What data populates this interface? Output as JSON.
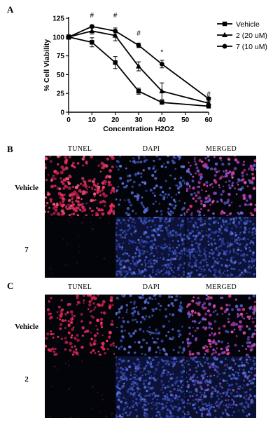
{
  "panels": {
    "a": "A",
    "b": "B",
    "c": "C"
  },
  "chart_data": {
    "type": "line",
    "title": "",
    "xlabel": "Concentration H2O2",
    "ylabel": "% Cell Viability",
    "xlim": [
      0,
      60
    ],
    "ylim": [
      0,
      125
    ],
    "x_ticks": [
      0,
      10,
      20,
      30,
      40,
      50,
      60
    ],
    "y_ticks": [
      0,
      25,
      50,
      75,
      100,
      125
    ],
    "x_tick_labels": [
      "0",
      "10",
      "20",
      "30",
      "40",
      "50",
      "60"
    ],
    "y_tick_labels": [
      "0",
      "25",
      "50",
      "75",
      "100",
      "125"
    ],
    "legend_position": "top-right",
    "series": [
      {
        "name": "Vehicle",
        "marker": "square",
        "x": [
          0,
          10,
          20,
          30,
          40,
          60
        ],
        "y": [
          100,
          93,
          66,
          28,
          13,
          8
        ],
        "err": [
          3,
          6,
          8,
          4,
          1,
          1
        ]
      },
      {
        "name": "2 (20 uM)",
        "marker": "triangle",
        "x": [
          0,
          10,
          20,
          30,
          40,
          60
        ],
        "y": [
          100,
          108,
          102,
          61,
          28,
          12
        ],
        "err": [
          2,
          4,
          7,
          6,
          11,
          2
        ]
      },
      {
        "name": "7 (10 uM)",
        "marker": "circle",
        "x": [
          0,
          10,
          20,
          30,
          40,
          60
        ],
        "y": [
          100,
          114,
          108,
          89,
          64,
          18
        ],
        "err": [
          2,
          2,
          4,
          3,
          5,
          2
        ]
      }
    ],
    "annotations": [
      {
        "x": 10,
        "y": 126,
        "text": "#"
      },
      {
        "x": 20,
        "y": 126,
        "text": "#"
      },
      {
        "x": 30,
        "y": 102,
        "text": "#"
      },
      {
        "x": 40,
        "y": 77,
        "text": "*"
      },
      {
        "x": 60,
        "y": 21,
        "text": "#"
      }
    ]
  },
  "panel_b": {
    "columns": [
      "TUNEL",
      "DAPI",
      "MERGED"
    ],
    "rows": [
      "Vehicle",
      "7"
    ]
  },
  "panel_c": {
    "columns": [
      "TUNEL",
      "DAPI",
      "MERGED"
    ],
    "rows": [
      "Vehicle",
      "2"
    ]
  }
}
